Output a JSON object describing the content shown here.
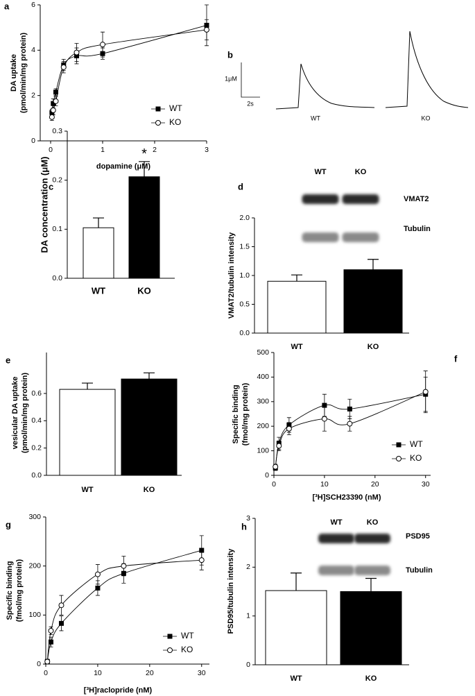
{
  "chart_data": [
    {
      "type": "scatter",
      "label": "a",
      "xlabel": "dopamine (μM)",
      "ylabel": [
        "DA uptake",
        "(pmol/min/mg protein)"
      ],
      "x": [
        0.025,
        0.05,
        0.1,
        0.25,
        0.5,
        1,
        3
      ],
      "series": [
        {
          "name": "WT",
          "color": "#000000",
          "marker": "square",
          "values": [
            1.25,
            1.65,
            2.15,
            3.35,
            3.75,
            3.85,
            5.1
          ],
          "errors": [
            0.15,
            0.2,
            0.15,
            0.25,
            0.35,
            0.25,
            0.9
          ]
        },
        {
          "name": "KO",
          "color": "#000000",
          "marker": "circle",
          "values": [
            1.05,
            1.35,
            1.75,
            3.25,
            3.9,
            4.25,
            4.9
          ],
          "errors": [
            0.15,
            0.2,
            0.2,
            0.25,
            0.4,
            0.55,
            0.45
          ]
        }
      ],
      "xlim": [
        -0.2,
        3
      ],
      "xticks": [
        0,
        1,
        2,
        3
      ],
      "ylim": [
        0,
        6
      ],
      "yticks": [
        0,
        2,
        4,
        6
      ]
    },
    {
      "type": "trace",
      "label": "b",
      "scale_y": "1μM",
      "scale_x": "2s",
      "categories": [
        "WT",
        "KO"
      ]
    },
    {
      "type": "bar",
      "label": "c",
      "ylabel": "DA concentration (μM)",
      "categories": [
        "WT",
        "KO"
      ],
      "values": [
        0.103,
        0.207
      ],
      "errors": [
        0.02,
        0.031
      ],
      "colors": [
        "#ffffff",
        "#000000"
      ],
      "annotation": "*",
      "ylim": [
        0,
        0.3
      ],
      "yticks": [
        {
          "value": 0,
          "label": "0.0"
        },
        0.1,
        0.2,
        0.3
      ]
    },
    {
      "type": "bar",
      "label": "d",
      "ylabel": "VMAT2/tubulin intensity",
      "categories": [
        "WT",
        "KO"
      ],
      "values": [
        0.9,
        1.1
      ],
      "errors": [
        0.11,
        0.18
      ],
      "colors": [
        "#ffffff",
        "#000000"
      ],
      "blot": {
        "lanes": [
          "WT",
          "KO"
        ],
        "bands": [
          "VMAT2",
          "Tubulin"
        ]
      },
      "ylim": [
        0,
        2
      ],
      "yticks": [
        {
          "value": 0,
          "label": "0.0"
        },
        0.5,
        {
          "value": 1,
          "label": "1.0"
        },
        1.5,
        {
          "value": 2,
          "label": "2.0"
        }
      ]
    },
    {
      "type": "bar",
      "label": "e",
      "ylabel": [
        "vesicular DA uptake",
        "(pmol/min/mg protein)"
      ],
      "categories": [
        "WT",
        "KO"
      ],
      "values": [
        0.63,
        0.706
      ],
      "errors": [
        0.046,
        0.045
      ],
      "colors": [
        "#ffffff",
        "#000000"
      ],
      "ylim": [
        0,
        0.9
      ],
      "yticks": [
        {
          "value": 0,
          "label": "0.0"
        },
        0.2,
        0.4,
        0.6
      ]
    },
    {
      "type": "scatter",
      "label": "f",
      "xlabel": "[³H]SCH23390 (nM)",
      "ylabel": [
        "Specific binding",
        "(fmol/mg protein)"
      ],
      "x": [
        0.3,
        1,
        3,
        10,
        15,
        30
      ],
      "series": [
        {
          "name": "WT",
          "color": "#000000",
          "marker": "square",
          "values": [
            30,
            130,
            205,
            285,
            270,
            330
          ],
          "errors": [
            10,
            25,
            30,
            45,
            40,
            70
          ]
        },
        {
          "name": "KO",
          "color": "#000000",
          "marker": "circle",
          "values": [
            35,
            120,
            190,
            230,
            210,
            340
          ],
          "errors": [
            10,
            20,
            25,
            50,
            30,
            85
          ]
        }
      ],
      "xlim": [
        0,
        31
      ],
      "xticks": [
        0,
        10,
        20,
        30
      ],
      "ylim": [
        0,
        500
      ],
      "yticks": [
        0,
        100,
        200,
        300,
        400,
        500
      ]
    },
    {
      "type": "scatter",
      "label": "g",
      "xlabel": "[³H]raclopride (nM)",
      "ylabel": [
        "Specific binding",
        "(fmol/mg protein)"
      ],
      "x": [
        0.3,
        1,
        3,
        10,
        15,
        30
      ],
      "series": [
        {
          "name": "WT",
          "color": "#000000",
          "marker": "square",
          "values": [
            5,
            45,
            83,
            155,
            185,
            232
          ],
          "errors": [
            5,
            10,
            15,
            15,
            20,
            30
          ]
        },
        {
          "name": "KO",
          "color": "#000000",
          "marker": "circle",
          "values": [
            5,
            68,
            120,
            183,
            200,
            212
          ],
          "errors": [
            5,
            8,
            20,
            20,
            20,
            20
          ]
        }
      ],
      "xlim": [
        0,
        31.5
      ],
      "xticks": [
        0,
        10,
        20,
        30
      ],
      "ylim": [
        0,
        300
      ],
      "yticks": [
        0,
        100,
        200,
        300
      ]
    },
    {
      "type": "bar",
      "label": "h",
      "ylabel": "PSD95/tubulin intensity",
      "categories": [
        "WT",
        "KO"
      ],
      "values": [
        1.52,
        1.5
      ],
      "errors": [
        0.36,
        0.27
      ],
      "colors": [
        "#ffffff",
        "#000000"
      ],
      "blot": {
        "lanes": [
          "WT",
          "KO"
        ],
        "bands": [
          "PSD95",
          "Tubulin"
        ]
      },
      "ylim": [
        0,
        3
      ],
      "yticks": [
        0,
        1,
        2,
        3
      ]
    }
  ]
}
